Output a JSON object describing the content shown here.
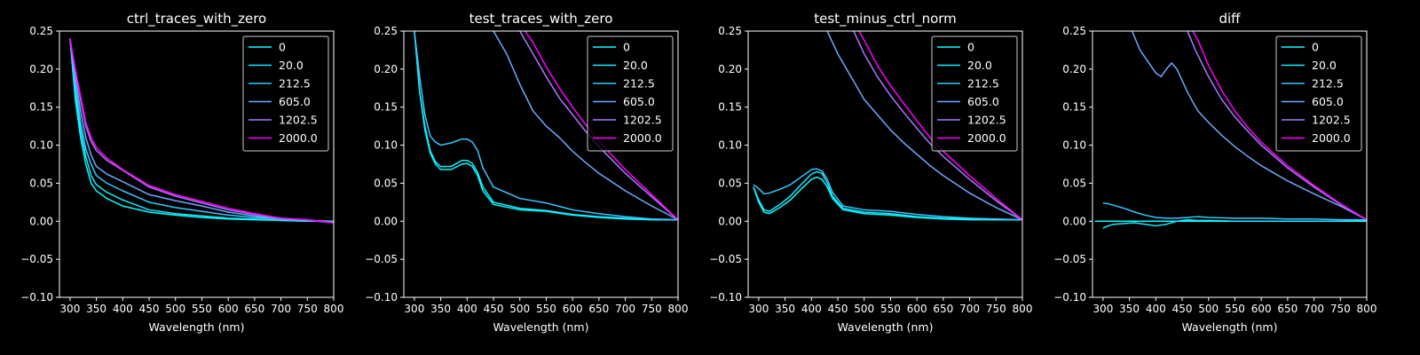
{
  "figure": {
    "background": "#000000",
    "axis_color": "#ffffff",
    "legend_frame_color": "#cccccc"
  },
  "chart_data": [
    {
      "type": "line",
      "title": "ctrl_traces_with_zero",
      "xlabel": "Wavelength (nm)",
      "ylabel": "",
      "xlim": [
        280,
        800
      ],
      "ylim": [
        -0.1,
        0.25
      ],
      "xticks": [
        300,
        350,
        400,
        450,
        500,
        550,
        600,
        650,
        700,
        750,
        800
      ],
      "yticks": [
        -0.1,
        -0.05,
        0.0,
        0.05,
        0.1,
        0.15,
        0.2,
        0.25
      ],
      "ytick_labels": [
        "−0.10",
        "−0.05",
        "0.00",
        "0.05",
        "0.10",
        "0.15",
        "0.20",
        "0.25"
      ],
      "grid": false,
      "legend_position": "top-right",
      "series": [
        {
          "name": "0",
          "color": "#00ffff",
          "x": [
            300,
            310,
            320,
            330,
            340,
            350,
            370,
            400,
            450,
            500,
            550,
            600,
            650,
            700,
            750,
            800
          ],
          "y": [
            0.24,
            0.16,
            0.11,
            0.075,
            0.05,
            0.04,
            0.03,
            0.02,
            0.012,
            0.008,
            0.005,
            0.003,
            0.002,
            0.001,
            0.0,
            0.0
          ]
        },
        {
          "name": "20.0",
          "color": "#13ecff",
          "x": [
            300,
            310,
            320,
            330,
            340,
            350,
            370,
            400,
            450,
            500,
            550,
            600,
            650,
            700,
            750,
            800
          ],
          "y": [
            0.24,
            0.17,
            0.12,
            0.085,
            0.06,
            0.048,
            0.038,
            0.028,
            0.015,
            0.01,
            0.007,
            0.004,
            0.003,
            0.001,
            0.0,
            0.0
          ]
        },
        {
          "name": "212.5",
          "color": "#38c7ff",
          "x": [
            300,
            310,
            320,
            330,
            340,
            350,
            370,
            400,
            450,
            500,
            550,
            600,
            650,
            700,
            750,
            800
          ],
          "y": [
            0.24,
            0.18,
            0.13,
            0.095,
            0.075,
            0.06,
            0.05,
            0.04,
            0.025,
            0.018,
            0.013,
            0.008,
            0.005,
            0.003,
            0.001,
            0.0
          ]
        },
        {
          "name": "605.0",
          "color": "#6ca9ff",
          "x": [
            300,
            310,
            320,
            330,
            340,
            350,
            370,
            400,
            450,
            500,
            550,
            600,
            650,
            700,
            750,
            800
          ],
          "y": [
            0.24,
            0.19,
            0.145,
            0.11,
            0.087,
            0.072,
            0.062,
            0.052,
            0.035,
            0.027,
            0.02,
            0.012,
            0.007,
            0.003,
            0.001,
            -0.002
          ]
        },
        {
          "name": "1202.5",
          "color": "#a67aff",
          "x": [
            300,
            310,
            320,
            330,
            340,
            350,
            370,
            400,
            450,
            500,
            550,
            600,
            650,
            700,
            750,
            800
          ],
          "y": [
            0.24,
            0.2,
            0.16,
            0.125,
            0.105,
            0.093,
            0.08,
            0.067,
            0.045,
            0.033,
            0.024,
            0.015,
            0.009,
            0.004,
            0.002,
            -0.002
          ]
        },
        {
          "name": "2000.0",
          "color": "#ff00ff",
          "x": [
            300,
            310,
            320,
            330,
            340,
            350,
            370,
            400,
            450,
            500,
            550,
            600,
            650,
            700,
            750,
            800
          ],
          "y": [
            0.24,
            0.2,
            0.165,
            0.13,
            0.11,
            0.097,
            0.083,
            0.068,
            0.047,
            0.035,
            0.026,
            0.017,
            0.01,
            0.004,
            0.002,
            -0.002
          ]
        }
      ]
    },
    {
      "type": "line",
      "title": "test_traces_with_zero",
      "xlabel": "Wavelength (nm)",
      "ylabel": "",
      "xlim": [
        280,
        800
      ],
      "ylim": [
        -0.1,
        0.25
      ],
      "xticks": [
        300,
        350,
        400,
        450,
        500,
        550,
        600,
        650,
        700,
        750,
        800
      ],
      "yticks": [
        -0.1,
        -0.05,
        0.0,
        0.05,
        0.1,
        0.15,
        0.2,
        0.25
      ],
      "ytick_labels": [
        "−0.10",
        "−0.05",
        "0.00",
        "0.05",
        "0.10",
        "0.15",
        "0.20",
        "0.25"
      ],
      "grid": false,
      "legend_position": "top-right",
      "series": [
        {
          "name": "0",
          "color": "#00ffff",
          "x": [
            300,
            310,
            320,
            330,
            340,
            350,
            370,
            390,
            400,
            410,
            420,
            430,
            450,
            500,
            550,
            600,
            650,
            700,
            750,
            800
          ],
          "y": [
            0.25,
            0.17,
            0.12,
            0.09,
            0.075,
            0.068,
            0.068,
            0.075,
            0.076,
            0.072,
            0.06,
            0.04,
            0.022,
            0.015,
            0.013,
            0.008,
            0.005,
            0.003,
            0.002,
            0.002
          ]
        },
        {
          "name": "20.0",
          "color": "#13ecff",
          "x": [
            300,
            310,
            320,
            330,
            340,
            350,
            370,
            390,
            400,
            410,
            420,
            430,
            450,
            500,
            550,
            600,
            650,
            700,
            750,
            800
          ],
          "y": [
            0.25,
            0.17,
            0.125,
            0.093,
            0.078,
            0.072,
            0.072,
            0.08,
            0.08,
            0.076,
            0.064,
            0.045,
            0.025,
            0.017,
            0.014,
            0.009,
            0.006,
            0.004,
            0.002,
            0.002
          ]
        },
        {
          "name": "212.5",
          "color": "#38c7ff",
          "x": [
            300,
            310,
            320,
            330,
            340,
            350,
            370,
            390,
            400,
            410,
            420,
            430,
            450,
            500,
            550,
            600,
            650,
            700,
            750,
            800
          ],
          "y": [
            0.25,
            0.19,
            0.14,
            0.112,
            0.104,
            0.1,
            0.103,
            0.108,
            0.108,
            0.104,
            0.093,
            0.07,
            0.045,
            0.03,
            0.024,
            0.015,
            0.01,
            0.006,
            0.003,
            0.002
          ]
        },
        {
          "name": "605.0",
          "color": "#6ca9ff",
          "x": [
            450,
            475,
            500,
            525,
            550,
            575,
            600,
            625,
            650,
            700,
            750,
            800
          ],
          "y": [
            0.25,
            0.22,
            0.18,
            0.145,
            0.125,
            0.11,
            0.092,
            0.077,
            0.063,
            0.04,
            0.02,
            0.002
          ]
        },
        {
          "name": "1202.5",
          "color": "#a67aff",
          "x": [
            500,
            525,
            550,
            575,
            600,
            625,
            650,
            700,
            750,
            800
          ],
          "y": [
            0.25,
            0.22,
            0.19,
            0.162,
            0.14,
            0.118,
            0.098,
            0.063,
            0.032,
            0.002
          ]
        },
        {
          "name": "2000.0",
          "color": "#ff00ff",
          "x": [
            510,
            525,
            550,
            575,
            600,
            625,
            650,
            700,
            750,
            800
          ],
          "y": [
            0.25,
            0.235,
            0.203,
            0.175,
            0.15,
            0.127,
            0.105,
            0.068,
            0.035,
            0.002
          ]
        }
      ]
    },
    {
      "type": "line",
      "title": "test_minus_ctrl_norm",
      "xlabel": "Wavelength (nm)",
      "ylabel": "",
      "xlim": [
        280,
        800
      ],
      "ylim": [
        -0.1,
        0.25
      ],
      "xticks": [
        300,
        350,
        400,
        450,
        500,
        550,
        600,
        650,
        700,
        750,
        800
      ],
      "yticks": [
        -0.1,
        -0.05,
        0.0,
        0.05,
        0.1,
        0.15,
        0.2,
        0.25
      ],
      "ytick_labels": [
        "−0.10",
        "−0.05",
        "0.00",
        "0.05",
        "0.10",
        "0.15",
        "0.20",
        "0.25"
      ],
      "grid": false,
      "legend_position": "top-right",
      "series": [
        {
          "name": "0",
          "color": "#00ffff",
          "x": [
            290,
            300,
            310,
            320,
            340,
            360,
            380,
            400,
            410,
            420,
            430,
            440,
            460,
            500,
            550,
            600,
            650,
            700,
            750,
            800
          ],
          "y": [
            0.045,
            0.025,
            0.012,
            0.01,
            0.018,
            0.028,
            0.042,
            0.055,
            0.058,
            0.055,
            0.045,
            0.03,
            0.015,
            0.01,
            0.008,
            0.005,
            0.003,
            0.002,
            0.002,
            0.002
          ]
        },
        {
          "name": "20.0",
          "color": "#13ecff",
          "x": [
            290,
            300,
            310,
            320,
            340,
            360,
            380,
            400,
            410,
            420,
            430,
            440,
            460,
            500,
            550,
            600,
            650,
            700,
            750,
            800
          ],
          "y": [
            0.045,
            0.028,
            0.015,
            0.013,
            0.022,
            0.033,
            0.048,
            0.062,
            0.065,
            0.063,
            0.05,
            0.033,
            0.017,
            0.012,
            0.01,
            0.006,
            0.004,
            0.003,
            0.002,
            0.002
          ]
        },
        {
          "name": "212.5",
          "color": "#38c7ff",
          "x": [
            290,
            300,
            310,
            320,
            340,
            360,
            380,
            400,
            410,
            420,
            430,
            440,
            460,
            500,
            550,
            600,
            650,
            700,
            750,
            800
          ],
          "y": [
            0.048,
            0.043,
            0.036,
            0.037,
            0.042,
            0.048,
            0.058,
            0.068,
            0.069,
            0.066,
            0.055,
            0.038,
            0.02,
            0.015,
            0.013,
            0.009,
            0.006,
            0.004,
            0.003,
            0.002
          ]
        },
        {
          "name": "605.0",
          "color": "#6ca9ff",
          "x": [
            430,
            450,
            475,
            500,
            525,
            550,
            575,
            600,
            625,
            650,
            700,
            750,
            800
          ],
          "y": [
            0.25,
            0.22,
            0.19,
            0.16,
            0.14,
            0.12,
            0.103,
            0.088,
            0.073,
            0.06,
            0.037,
            0.018,
            0.002
          ]
        },
        {
          "name": "1202.5",
          "color": "#a67aff",
          "x": [
            480,
            500,
            525,
            550,
            575,
            600,
            625,
            650,
            700,
            750,
            800
          ],
          "y": [
            0.25,
            0.22,
            0.19,
            0.165,
            0.143,
            0.122,
            0.102,
            0.085,
            0.055,
            0.027,
            0.002
          ]
        },
        {
          "name": "2000.0",
          "color": "#ff00ff",
          "x": [
            490,
            500,
            525,
            550,
            575,
            600,
            625,
            650,
            700,
            750,
            800
          ],
          "y": [
            0.25,
            0.238,
            0.205,
            0.178,
            0.155,
            0.132,
            0.11,
            0.092,
            0.06,
            0.03,
            0.002
          ]
        }
      ]
    },
    {
      "type": "line",
      "title": "diff",
      "xlabel": "Wavelength (nm)",
      "ylabel": "",
      "xlim": [
        280,
        800
      ],
      "ylim": [
        -0.1,
        0.25
      ],
      "xticks": [
        300,
        350,
        400,
        450,
        500,
        550,
        600,
        650,
        700,
        750,
        800
      ],
      "yticks": [
        -0.1,
        -0.05,
        0.0,
        0.05,
        0.1,
        0.15,
        0.2,
        0.25
      ],
      "ytick_labels": [
        "−0.10",
        "−0.05",
        "0.00",
        "0.05",
        "0.10",
        "0.15",
        "0.20",
        "0.25"
      ],
      "grid": false,
      "legend_position": "top-right",
      "series": [
        {
          "name": "0",
          "color": "#00ffff",
          "x": [
            285,
            350,
            400,
            450,
            500,
            550,
            600,
            650,
            700,
            750,
            800
          ],
          "y": [
            0.0,
            0.0,
            0.0,
            0.0,
            0.0,
            0.0,
            0.0,
            0.0,
            0.0,
            0.0,
            0.0
          ]
        },
        {
          "name": "20.0",
          "color": "#13ecff",
          "x": [
            300,
            310,
            320,
            340,
            360,
            380,
            400,
            420,
            440,
            460,
            480,
            500,
            550,
            600,
            650,
            700,
            750,
            800
          ],
          "y": [
            -0.009,
            -0.006,
            -0.004,
            -0.003,
            -0.002,
            -0.004,
            -0.006,
            -0.004,
            0.0,
            0.002,
            0.001,
            0.001,
            0.0,
            0.0,
            0.0,
            0.0,
            0.0,
            0.001
          ]
        },
        {
          "name": "212.5",
          "color": "#38c7ff",
          "x": [
            300,
            310,
            320,
            340,
            360,
            380,
            400,
            420,
            440,
            460,
            480,
            500,
            550,
            600,
            650,
            700,
            750,
            800
          ],
          "y": [
            0.024,
            0.023,
            0.021,
            0.017,
            0.012,
            0.008,
            0.005,
            0.004,
            0.004,
            0.005,
            0.006,
            0.005,
            0.004,
            0.004,
            0.003,
            0.003,
            0.002,
            0.002
          ]
        },
        {
          "name": "605.0",
          "color": "#6ca9ff",
          "x": [
            355,
            370,
            390,
            400,
            410,
            420,
            430,
            440,
            450,
            460,
            470,
            480,
            500,
            525,
            550,
            575,
            600,
            625,
            650,
            700,
            750,
            800
          ],
          "y": [
            0.25,
            0.225,
            0.205,
            0.195,
            0.19,
            0.2,
            0.208,
            0.2,
            0.185,
            0.17,
            0.157,
            0.145,
            0.13,
            0.113,
            0.098,
            0.085,
            0.073,
            0.063,
            0.053,
            0.036,
            0.02,
            0.002
          ]
        },
        {
          "name": "1202.5",
          "color": "#a67aff",
          "x": [
            460,
            475,
            500,
            525,
            550,
            575,
            600,
            625,
            650,
            700,
            750,
            800
          ],
          "y": [
            0.25,
            0.225,
            0.19,
            0.16,
            0.137,
            0.118,
            0.1,
            0.085,
            0.07,
            0.045,
            0.022,
            0.002
          ]
        },
        {
          "name": "2000.0",
          "color": "#ff00ff",
          "x": [
            470,
            480,
            500,
            525,
            550,
            575,
            600,
            625,
            650,
            700,
            750,
            800
          ],
          "y": [
            0.25,
            0.238,
            0.205,
            0.172,
            0.145,
            0.123,
            0.104,
            0.088,
            0.073,
            0.047,
            0.023,
            0.002
          ]
        }
      ]
    }
  ]
}
